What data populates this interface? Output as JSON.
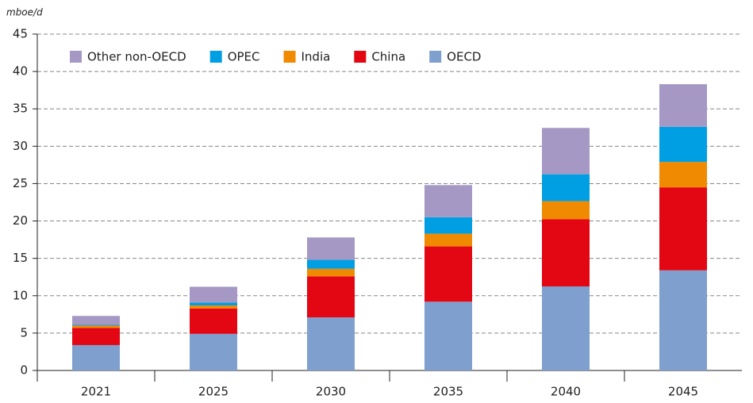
{
  "chart_data": {
    "type": "stacked_bar",
    "unit_label": "mboe/d",
    "categories": [
      "2021",
      "2025",
      "2030",
      "2035",
      "2040",
      "2045"
    ],
    "series": [
      {
        "name": "OECD",
        "color": "#7f9fcf",
        "values": [
          3.4,
          4.9,
          7.1,
          9.2,
          11.25,
          13.4
        ]
      },
      {
        "name": "China",
        "color": "#e30613",
        "values": [
          2.3,
          3.4,
          5.5,
          7.4,
          9.0,
          11.1
        ]
      },
      {
        "name": "India",
        "color": "#f08a00",
        "values": [
          0.3,
          0.4,
          1.0,
          1.7,
          2.4,
          3.4
        ]
      },
      {
        "name": "OPEC",
        "color": "#009fe3",
        "values": [
          0.1,
          0.4,
          1.2,
          2.2,
          3.6,
          4.7
        ]
      },
      {
        "name": "Other non-OECD",
        "color": "#a598c4",
        "values": [
          1.2,
          2.1,
          3.0,
          4.3,
          6.2,
          5.7
        ]
      }
    ],
    "ylim": [
      0,
      45
    ],
    "yticks": [
      0,
      5,
      10,
      15,
      20,
      25,
      30,
      35,
      40,
      45
    ],
    "grid": true
  }
}
